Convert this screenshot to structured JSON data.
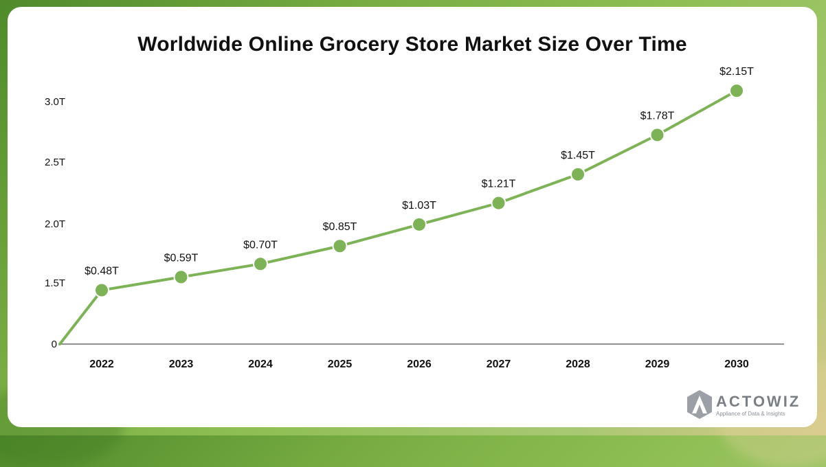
{
  "chart_data": {
    "type": "line",
    "title": "Worldwide Online Grocery Store Market Size Over Time",
    "xlabel": "",
    "ylabel": "",
    "categories": [
      "2022",
      "2023",
      "2024",
      "2025",
      "2026",
      "2027",
      "2028",
      "2029",
      "2030"
    ],
    "values": [
      0.48,
      0.59,
      0.7,
      0.85,
      1.03,
      1.21,
      1.45,
      1.78,
      2.15
    ],
    "data_labels": [
      "$0.48T",
      "$0.59T",
      "$0.70T",
      "$0.85T",
      "$1.03T",
      "$1.21T",
      "$1.45T",
      "$1.78T",
      "$2.15T"
    ],
    "ytick_labels": [
      "0",
      "1.5T",
      "2.0T",
      "2.5T",
      "3.0T"
    ],
    "grid": false,
    "legend": "none",
    "line_color": "#7db356",
    "marker_color": "#7db356"
  },
  "brand": {
    "name": "ACTOWIZ",
    "tagline": "Appliance of Data & Insights",
    "color": "#7a7f86"
  }
}
